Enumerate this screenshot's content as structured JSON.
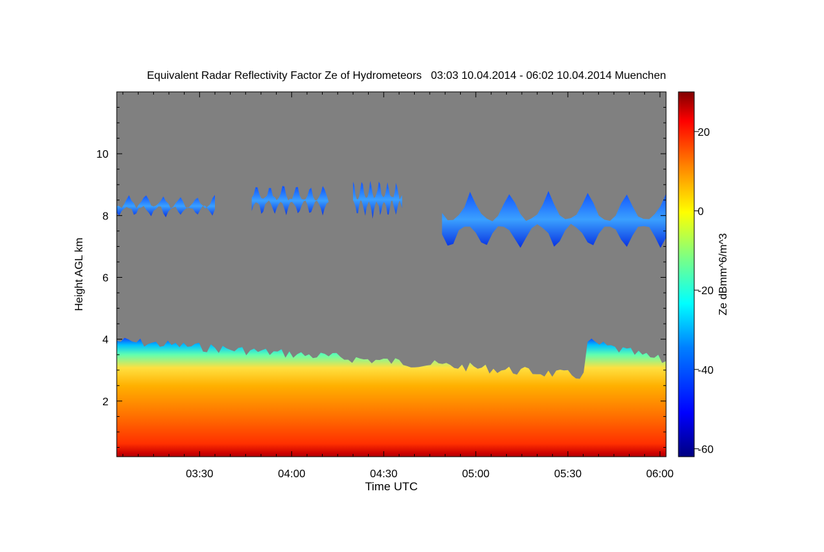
{
  "chart_data": {
    "type": "heatmap",
    "title": "Equivalent Radar Reflectivity Factor Ze of Hydrometeors   03:03 10.04.2014 - 06:02 10.04.2014 Muenchen",
    "xlabel": "Time UTC",
    "ylabel": "Height AGL km",
    "colorbar_label": "Ze dBmm^6/m^3",
    "x_range": [
      "03:03",
      "06:02"
    ],
    "ylim": [
      0.2,
      12
    ],
    "x_ticks": [
      {
        "t": "03:30",
        "label": "03:30"
      },
      {
        "t": "04:00",
        "label": "04:00"
      },
      {
        "t": "04:30",
        "label": "04:30"
      },
      {
        "t": "05:00",
        "label": "05:00"
      },
      {
        "t": "05:30",
        "label": "05:30"
      },
      {
        "t": "06:00",
        "label": "06:00"
      }
    ],
    "y_ticks": [
      {
        "v": 2,
        "label": "2"
      },
      {
        "v": 4,
        "label": "4"
      },
      {
        "v": 6,
        "label": "6"
      },
      {
        "v": 8,
        "label": "8"
      },
      {
        "v": 10,
        "label": "10"
      }
    ],
    "colorbar": {
      "range": [
        -62,
        30
      ],
      "ticks": [
        {
          "v": 20,
          "label": "20"
        },
        {
          "v": 0,
          "label": "0"
        },
        {
          "v": -20,
          "label": "-20"
        },
        {
          "v": -40,
          "label": "-40"
        },
        {
          "v": -60,
          "label": "-60"
        }
      ]
    },
    "colors": {
      "background_no_echo": "#808080",
      "colormap": [
        "#000080",
        "#0000ff",
        "#0080ff",
        "#00ffff",
        "#80ff80",
        "#ffff00",
        "#ff8000",
        "#ff0000",
        "#800000"
      ]
    },
    "regions": [
      {
        "name": "lower-precipitation-layer",
        "time_range": [
          "03:03",
          "06:02"
        ],
        "height_range_km": [
          0.2,
          4.1
        ],
        "ze_range_dbz": [
          -45,
          30
        ]
      },
      {
        "name": "upper-cloud-a",
        "time_range": [
          "03:03",
          "03:35"
        ],
        "height_range_km": [
          7.8,
          8.9
        ],
        "ze_range_dbz": [
          -45,
          -35
        ]
      },
      {
        "name": "upper-cloud-b",
        "time_range": [
          "03:47",
          "04:12"
        ],
        "height_range_km": [
          7.8,
          9.3
        ],
        "ze_range_dbz": [
          -45,
          -35
        ]
      },
      {
        "name": "upper-cloud-c",
        "time_range": [
          "04:20",
          "04:36"
        ],
        "height_range_km": [
          7.7,
          9.5
        ],
        "ze_range_dbz": [
          -45,
          -35
        ]
      },
      {
        "name": "upper-cloud-d",
        "time_range": [
          "04:49",
          "06:02"
        ],
        "height_range_km": [
          6.6,
          9.2
        ],
        "ze_range_dbz": [
          -45,
          -25
        ]
      }
    ]
  }
}
